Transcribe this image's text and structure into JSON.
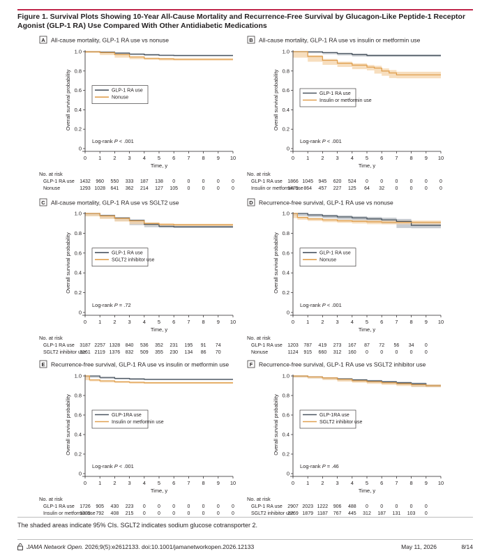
{
  "figure": {
    "title": "Figure 1. Survival Plots Showing 10-Year All-Cause Mortality and Recurrence-Free Survival by Glucagon-Like Peptide-1 Receptor Agonist (GLP-1 RA) Use Compared With Other Antidiabetic Medications",
    "caption": "The shaded areas indicate 95% CIs. SGLT2 indicates sodium glucose cotransporter 2."
  },
  "footer": {
    "journal": "JAMA Network Open.",
    "citation": " 2026;9(5):e2612133. doi:10.1001/jamanetworkopen.2026.12133",
    "date": "May 11, 2026",
    "page": "8/14"
  },
  "colors": {
    "accent": "#c0264b",
    "glp1": "#4a5560",
    "comparator": "#e0a050",
    "band_glp1": "#9aa3ab",
    "band_comp": "#f4d3a8"
  },
  "chart_data": [
    {
      "panel": "A",
      "type": "line",
      "title": "All-cause mortality, GLP-1 RA use vs nonuse",
      "xlabel": "Time, y",
      "ylabel": "Overall survival probability",
      "xlim": [
        0,
        10
      ],
      "ylim": [
        0,
        1.0
      ],
      "xticks": [
        "0",
        "1",
        "2",
        "3",
        "4",
        "5",
        "6",
        "7",
        "8",
        "9",
        "10"
      ],
      "yticks": [
        "0",
        "0.2",
        "0.4",
        "0.6",
        "0.8",
        "1.0"
      ],
      "legend": [
        "GLP-1 RA use",
        "Nonuse"
      ],
      "legend_position": "center-left",
      "pvalue_prefix": "Log-rank ",
      "pvalue_p": "P",
      "pvalue_suffix": " < .001",
      "series": [
        {
          "name": "GLP-1 RA use",
          "x": [
            0,
            1,
            2,
            3,
            4,
            5,
            6,
            10
          ],
          "y": [
            1.0,
            0.995,
            0.985,
            0.975,
            0.968,
            0.962,
            0.96,
            0.96
          ],
          "ci": 0.008
        },
        {
          "name": "Nonuse",
          "x": [
            0,
            1,
            2,
            3,
            4,
            5,
            6,
            10
          ],
          "y": [
            1.0,
            0.99,
            0.97,
            0.945,
            0.93,
            0.925,
            0.92,
            0.92
          ],
          "ci": 0.012
        }
      ],
      "risk": {
        "header": "No. at risk",
        "rows": [
          {
            "label": "GLP-1 RA use",
            "values": [
              "1432",
              "960",
              "550",
              "333",
              "187",
              "138",
              "0",
              "0",
              "0",
              "0",
              "0"
            ]
          },
          {
            "label": "Nonuse",
            "values": [
              "1293",
              "1028",
              "641",
              "362",
              "214",
              "127",
              "105",
              "0",
              "0",
              "0",
              "0"
            ]
          }
        ]
      }
    },
    {
      "panel": "B",
      "type": "line",
      "title": "All-cause mortality, GLP-1 RA use vs insulin or metformin use",
      "xlabel": "Time, y",
      "ylabel": "Overall survival probability",
      "xlim": [
        0,
        10
      ],
      "ylim": [
        0,
        1.0
      ],
      "xticks": [
        "0",
        "1",
        "2",
        "3",
        "4",
        "5",
        "6",
        "7",
        "8",
        "9",
        "10"
      ],
      "yticks": [
        "0",
        "0.2",
        "0.4",
        "0.6",
        "0.8",
        "1.0"
      ],
      "legend": [
        "GLP-1 RA use",
        "Insulin or metformin use"
      ],
      "legend_position": "upper-center",
      "pvalue_prefix": "Log-rank ",
      "pvalue_p": "P",
      "pvalue_suffix": " < .001",
      "series": [
        {
          "name": "GLP-1 RA use",
          "x": [
            0,
            1,
            2,
            3,
            4,
            5,
            10
          ],
          "y": [
            1.0,
            0.998,
            0.99,
            0.98,
            0.97,
            0.96,
            0.96
          ],
          "ci": 0.012
        },
        {
          "name": "Insulin or metformin use",
          "x": [
            0,
            1,
            2,
            3,
            4,
            5,
            5.5,
            6,
            6.5,
            7,
            10
          ],
          "y": [
            1.0,
            0.95,
            0.91,
            0.88,
            0.86,
            0.84,
            0.83,
            0.8,
            0.78,
            0.76,
            0.76
          ],
          "ci": 0.035
        }
      ],
      "risk": {
        "header": "No. at risk",
        "rows": [
          {
            "label": "GLP-1 RA use",
            "values": [
              "1866",
              "1045",
              "945",
              "620",
              "524",
              "0",
              "0",
              "0",
              "0",
              "0",
              "0"
            ]
          },
          {
            "label": "Insulin or metformin use",
            "values": [
              "1475",
              "864",
              "457",
              "227",
              "125",
              "64",
              "32",
              "0",
              "0",
              "0",
              "0"
            ]
          }
        ]
      }
    },
    {
      "panel": "C",
      "type": "line",
      "title": "All-cause mortality, GLP-1 RA use vs SGLT2 use",
      "xlabel": "Time, y",
      "ylabel": "Overall survival probability",
      "xlim": [
        0,
        10
      ],
      "ylim": [
        0,
        1.0
      ],
      "xticks": [
        "0",
        "1",
        "2",
        "3",
        "4",
        "5",
        "6",
        "7",
        "8",
        "9",
        "10"
      ],
      "yticks": [
        "0",
        "0.2",
        "0.4",
        "0.6",
        "0.8",
        "1.0"
      ],
      "legend": [
        "GLP-1 RA use",
        "SGLT2 inhibitor use"
      ],
      "legend_position": "center-left",
      "pvalue_prefix": "Log-rank ",
      "pvalue_p": "P",
      "pvalue_suffix": " = .72",
      "series": [
        {
          "name": "GLP-1 RA use",
          "x": [
            0,
            1,
            2,
            3,
            4,
            5,
            6,
            10
          ],
          "y": [
            1.0,
            0.98,
            0.955,
            0.93,
            0.89,
            0.87,
            0.865,
            0.865
          ],
          "ci": 0.012
        },
        {
          "name": "SGLT2 inhibitor use",
          "x": [
            0,
            1,
            2,
            3,
            4,
            5,
            6,
            10
          ],
          "y": [
            1.0,
            0.975,
            0.95,
            0.925,
            0.9,
            0.89,
            0.885,
            0.885
          ],
          "ci": 0.012
        }
      ],
      "risk": {
        "header": "No. at risk",
        "rows": [
          {
            "label": "GLP-1 RA use",
            "values": [
              "3187",
              "2257",
              "1328",
              "840",
              "536",
              "352",
              "231",
              "195",
              "91",
              "74"
            ]
          },
          {
            "label": "SGLT2 inhibitor use",
            "values": [
              "3161",
              "2119",
              "1376",
              "832",
              "509",
              "355",
              "230",
              "134",
              "86",
              "70"
            ]
          }
        ]
      }
    },
    {
      "panel": "D",
      "type": "line",
      "title": "Recurrence-free survival, GLP-1 RA use vs nonuse",
      "xlabel": "Time, y",
      "ylabel": "Overall survival probability",
      "xlim": [
        0,
        10
      ],
      "ylim": [
        0,
        1.0
      ],
      "xticks": [
        "0",
        "1",
        "2",
        "3",
        "4",
        "5",
        "6",
        "7",
        "8",
        "9",
        "10"
      ],
      "yticks": [
        "0",
        "0.2",
        "0.4",
        "0.6",
        "0.8",
        "1.0"
      ],
      "legend": [
        "GLP-1 RA use",
        "Nonuse"
      ],
      "legend_position": "center-left",
      "pvalue_prefix": "Log-rank ",
      "pvalue_p": "P",
      "pvalue_suffix": " < .001",
      "series": [
        {
          "name": "GLP-1 RA use",
          "x": [
            0,
            1,
            2,
            3,
            4,
            5,
            6,
            7,
            8,
            10
          ],
          "y": [
            1.0,
            0.985,
            0.975,
            0.965,
            0.955,
            0.945,
            0.935,
            0.92,
            0.88,
            0.88
          ],
          "ci": 0.03
        },
        {
          "name": "Nonuse",
          "x": [
            0,
            0.3,
            1,
            2,
            3,
            4,
            5,
            6,
            10
          ],
          "y": [
            1.0,
            0.96,
            0.945,
            0.935,
            0.925,
            0.92,
            0.915,
            0.91,
            0.91
          ],
          "ci": 0.02
        }
      ],
      "risk": {
        "header": "No. at risk",
        "rows": [
          {
            "label": "GLP-1 RA use",
            "values": [
              "1203",
              "787",
              "419",
              "273",
              "167",
              "87",
              "72",
              "56",
              "34",
              "0"
            ]
          },
          {
            "label": "Nonuse",
            "values": [
              "1124",
              "915",
              "660",
              "312",
              "160",
              "0",
              "0",
              "0",
              "0",
              "0"
            ]
          }
        ]
      }
    },
    {
      "panel": "E",
      "type": "line",
      "title": "Recurrence-free survival, GLP-1 RA use vs insulin or metformin use",
      "xlabel": "Time, y",
      "ylabel": "Overall survival probability",
      "xlim": [
        0,
        10
      ],
      "ylim": [
        0,
        1.0
      ],
      "xticks": [
        "0",
        "1",
        "2",
        "3",
        "4",
        "5",
        "6",
        "7",
        "8",
        "9",
        "10"
      ],
      "yticks": [
        "0",
        "0.2",
        "0.4",
        "0.6",
        "0.8",
        "1.0"
      ],
      "legend": [
        "GLP-1RA use",
        "Insulin or metformin use"
      ],
      "legend_position": "center-left",
      "pvalue_prefix": "Log-rank ",
      "pvalue_p": "P",
      "pvalue_suffix": " < .001",
      "series": [
        {
          "name": "GLP-1RA use",
          "x": [
            0,
            1,
            2,
            3,
            4,
            10
          ],
          "y": [
            1.0,
            0.985,
            0.975,
            0.97,
            0.965,
            0.965
          ],
          "ci": 0.008
        },
        {
          "name": "Insulin or metformin use",
          "x": [
            0,
            0.3,
            1,
            2,
            3,
            4,
            10
          ],
          "y": [
            1.0,
            0.96,
            0.95,
            0.94,
            0.935,
            0.93,
            0.93
          ],
          "ci": 0.01
        }
      ],
      "risk": {
        "header": "No. at risk",
        "rows": [
          {
            "label": "GLP-1 RA use",
            "values": [
              "1726",
              "905",
              "430",
              "223",
              "0",
              "0",
              "0",
              "0",
              "0",
              "0",
              "0"
            ]
          },
          {
            "label": "Insulin or metformin use",
            "values": [
              "1335",
              "792",
              "408",
              "215",
              "0",
              "0",
              "0",
              "0",
              "0",
              "0",
              "0"
            ]
          }
        ]
      }
    },
    {
      "panel": "F",
      "type": "line",
      "title": "Recurrence-free survival, GLP-1 RA use vs SGLT2 inhibitor use",
      "xlabel": "Time, y",
      "ylabel": "Overall survival probability",
      "xlim": [
        0,
        10
      ],
      "ylim": [
        0,
        1.0
      ],
      "xticks": [
        "0",
        "1",
        "2",
        "3",
        "4",
        "5",
        "6",
        "7",
        "8",
        "9",
        "10"
      ],
      "yticks": [
        "0",
        "0.2",
        "0.4",
        "0.6",
        "0.8",
        "1.0"
      ],
      "legend": [
        "GLP-1RA use",
        "SGLT2 inhibitor use"
      ],
      "legend_position": "center-left",
      "pvalue_prefix": "Log-rank ",
      "pvalue_p": "P",
      "pvalue_suffix": " = .46",
      "series": [
        {
          "name": "GLP-1RA use",
          "x": [
            0,
            1,
            2,
            3,
            4,
            5,
            6,
            7,
            8,
            9,
            10
          ],
          "y": [
            1.0,
            0.99,
            0.98,
            0.97,
            0.96,
            0.95,
            0.94,
            0.93,
            0.92,
            0.9,
            0.9
          ],
          "ci": 0.015
        },
        {
          "name": "SGLT2 inhibitor use",
          "x": [
            0,
            1,
            2,
            3,
            4,
            5,
            6,
            7,
            8,
            9,
            10
          ],
          "y": [
            1.0,
            0.99,
            0.98,
            0.965,
            0.95,
            0.94,
            0.93,
            0.92,
            0.91,
            0.9,
            0.9
          ],
          "ci": 0.015
        }
      ],
      "risk": {
        "header": "No. at risk",
        "rows": [
          {
            "label": "GLP-1 RA use",
            "values": [
              "2907",
              "2023",
              "1222",
              "906",
              "488",
              "0",
              "0",
              "0",
              "0",
              "0"
            ]
          },
          {
            "label": "SGLT2 inhibitor use",
            "values": [
              "2769",
              "1879",
              "1187",
              "767",
              "445",
              "312",
              "187",
              "131",
              "103",
              "0"
            ]
          }
        ]
      }
    }
  ]
}
